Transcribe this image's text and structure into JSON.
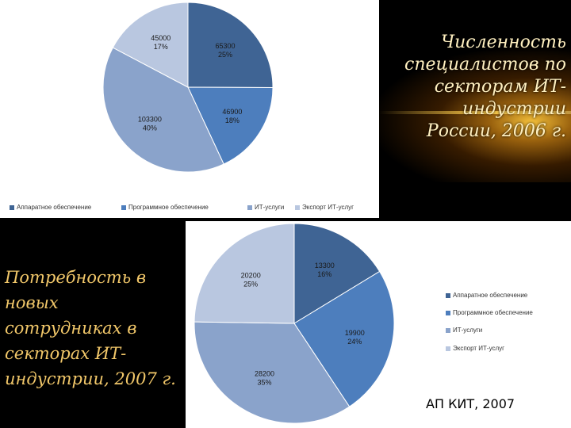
{
  "title_top": "Численность специалистов по секторам ИТ-индустрии России, 2006 г.",
  "title_bottom": "Потребность в новых сотрудниках в секторах ИТ-индустрии, 2007 г.",
  "source": "АП КИТ, 2007",
  "colors": {
    "hardware": "#3f6494",
    "software": "#4d7ebd",
    "it_services": "#8aa3cb",
    "it_export": "#b9c7e0"
  },
  "chart_data": [
    {
      "type": "pie",
      "categories": [
        "Аппаратное обеспечение",
        "Программное обеспечение",
        "ИТ-услуги",
        "Экспорт ИТ-услуг"
      ],
      "values": [
        65300,
        46900,
        103300,
        45000
      ],
      "value_labels": [
        "65300",
        "46900",
        "103300",
        "45000"
      ],
      "percent_labels": [
        "25%",
        "18%",
        "40%",
        "17%"
      ],
      "legend": "bottom"
    },
    {
      "type": "pie",
      "categories": [
        "Аппаратное обеспечение",
        "Программное обеспечение",
        "ИТ-услуги",
        "Экспорт ИТ-услуг"
      ],
      "values": [
        13300,
        19900,
        28200,
        20200
      ],
      "value_labels": [
        "13300",
        "19900",
        "28200",
        "20200"
      ],
      "percent_labels": [
        "16%",
        "24%",
        "35%",
        "25%"
      ],
      "legend": "right"
    }
  ]
}
